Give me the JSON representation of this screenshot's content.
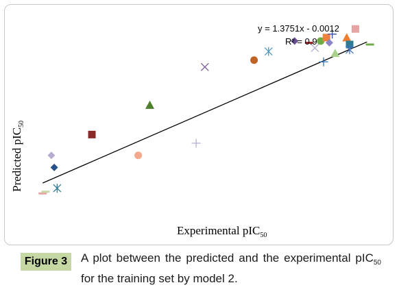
{
  "chart_data": {
    "type": "scatter",
    "xlabel": {
      "main": "Experimental pIC",
      "sub": "50"
    },
    "ylabel": {
      "main": "Predicted pIC",
      "sub": "50"
    },
    "trendline": {
      "slope": 1.3751,
      "intercept": -0.0012,
      "equation": "y = 1.3751x - 0.0012",
      "r2": "R² = 0.9"
    },
    "points": [
      {
        "x": 0.1,
        "y": 0.07,
        "marker": "dash",
        "color": "#e8a4a4"
      },
      {
        "x": 0.11,
        "y": 0.08,
        "marker": "dash",
        "color": "#c9d8a8"
      },
      {
        "x": 0.15,
        "y": 0.1,
        "marker": "asterisk",
        "color": "#2e7b93"
      },
      {
        "x": 0.14,
        "y": 0.22,
        "marker": "diamond",
        "color": "#27528a"
      },
      {
        "x": 0.13,
        "y": 0.29,
        "marker": "diamond",
        "color": "#b6aed0"
      },
      {
        "x": 0.27,
        "y": 0.41,
        "marker": "square",
        "color": "#8c2a2a"
      },
      {
        "x": 0.43,
        "y": 0.29,
        "marker": "circle",
        "color": "#f4a98e"
      },
      {
        "x": 0.47,
        "y": 0.58,
        "marker": "triangle",
        "color": "#4f7f2b"
      },
      {
        "x": 0.63,
        "y": 0.36,
        "marker": "plus",
        "color": "#b6aed0"
      },
      {
        "x": 0.66,
        "y": 0.8,
        "marker": "x",
        "color": "#7b5a9d"
      },
      {
        "x": 0.83,
        "y": 0.84,
        "marker": "circle",
        "color": "#c26428"
      },
      {
        "x": 0.88,
        "y": 0.89,
        "marker": "asterisk",
        "color": "#4e9bc0"
      },
      {
        "x": 0.97,
        "y": 0.95,
        "marker": "diamond",
        "color": "#6a4e92"
      },
      {
        "x": 1.02,
        "y": 0.94,
        "marker": "dash",
        "color": "#a02828"
      },
      {
        "x": 1.04,
        "y": 0.91,
        "marker": "x",
        "color": "#b6aed0"
      },
      {
        "x": 1.06,
        "y": 0.95,
        "marker": "circle",
        "color": "#6fac46"
      },
      {
        "x": 1.07,
        "y": 0.83,
        "marker": "plus",
        "color": "#2e75b6"
      },
      {
        "x": 1.08,
        "y": 0.97,
        "marker": "square",
        "color": "#f08040"
      },
      {
        "x": 1.09,
        "y": 0.94,
        "marker": "diamond",
        "color": "#8a86c8"
      },
      {
        "x": 1.1,
        "y": 0.99,
        "marker": "plus",
        "color": "#2f5597"
      },
      {
        "x": 1.11,
        "y": 0.88,
        "marker": "triangle",
        "color": "#a9d18e"
      },
      {
        "x": 1.15,
        "y": 0.97,
        "marker": "triangle",
        "color": "#ed7d31"
      },
      {
        "x": 1.16,
        "y": 0.93,
        "marker": "square",
        "color": "#2e7b93"
      },
      {
        "x": 1.16,
        "y": 0.9,
        "marker": "asterisk",
        "color": "#4472c4"
      },
      {
        "x": 1.18,
        "y": 1.02,
        "marker": "square",
        "color": "#e8a4a4"
      },
      {
        "x": 1.23,
        "y": 0.93,
        "marker": "dash",
        "color": "#6fac46"
      }
    ],
    "xlim": [
      0.0,
      1.25
    ],
    "ylim": [
      0.0,
      1.1
    ],
    "grid": false,
    "axes_visible": false
  },
  "figure": {
    "badge": "Figure 3",
    "caption_pre": "A plot between the predicted and the experimental pIC",
    "caption_sub": "50",
    "caption_post": " for the training set by model 2."
  },
  "colors": {
    "trendline": "#000000",
    "badge_bg": "#c5d8a4",
    "frame_border": "#c8c8c8"
  }
}
